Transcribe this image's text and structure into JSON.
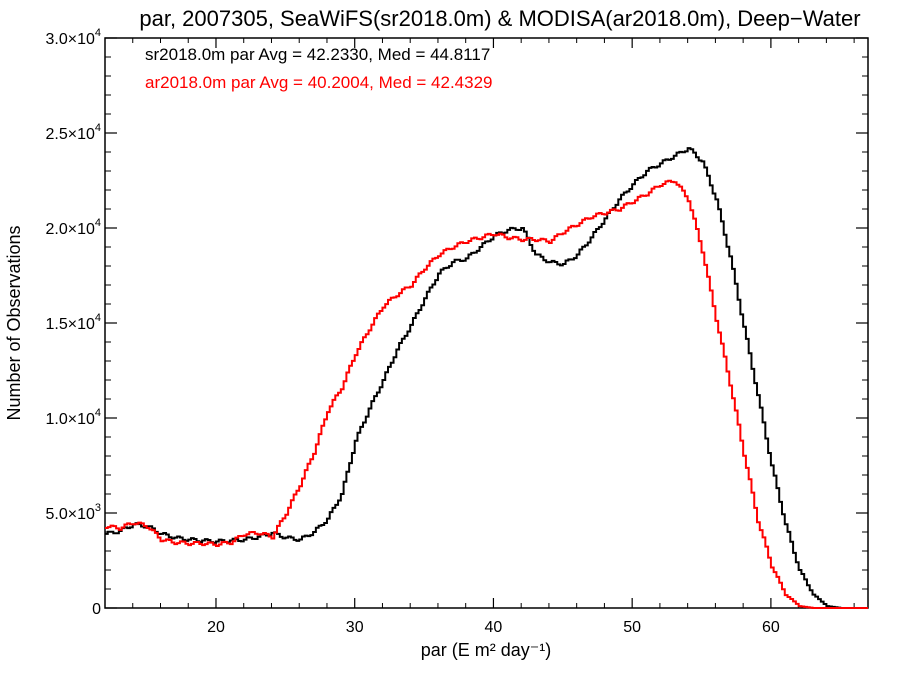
{
  "chart_data": {
    "type": "line",
    "title": "par, 2007305, SeaWiFS(sr2018.0m) & MODISA(ar2018.0m), Deep−Water",
    "xlabel": "par (E m² day⁻¹)",
    "ylabel": "Number of Observations",
    "xlim": [
      12,
      67
    ],
    "ylim": [
      0,
      30000
    ],
    "grid": false,
    "x_ticks": [
      {
        "value": 20,
        "label": "20"
      },
      {
        "value": 30,
        "label": "30"
      },
      {
        "value": 40,
        "label": "40"
      },
      {
        "value": 50,
        "label": "50"
      },
      {
        "value": 60,
        "label": "60"
      }
    ],
    "y_ticks": [
      {
        "value": 0,
        "mantissa": "0",
        "exponent": ""
      },
      {
        "value": 5000,
        "mantissa": "5.0×10",
        "exponent": "3"
      },
      {
        "value": 10000,
        "mantissa": "1.0×10",
        "exponent": "4"
      },
      {
        "value": 15000,
        "mantissa": "1.5×10",
        "exponent": "4"
      },
      {
        "value": 20000,
        "mantissa": "2.0×10",
        "exponent": "4"
      },
      {
        "value": 25000,
        "mantissa": "2.5×10",
        "exponent": "4"
      },
      {
        "value": 30000,
        "mantissa": "3.0×10",
        "exponent": "4"
      }
    ],
    "legend_position": "top-left",
    "series": [
      {
        "name": "sr2018.0m",
        "label": "sr2018.0m par Avg = 42.2330, Med = 44.8117",
        "color": "#000000",
        "points": [
          [
            12,
            3900
          ],
          [
            13,
            4050
          ],
          [
            14,
            4400
          ],
          [
            15,
            4300
          ],
          [
            16,
            3900
          ],
          [
            17,
            3700
          ],
          [
            18,
            3600
          ],
          [
            19,
            3550
          ],
          [
            20,
            3500
          ],
          [
            21,
            3550
          ],
          [
            22,
            3600
          ],
          [
            23,
            3750
          ],
          [
            24,
            3950
          ],
          [
            25,
            3700
          ],
          [
            26,
            3600
          ],
          [
            27,
            4000
          ],
          [
            28,
            4700
          ],
          [
            29,
            6000
          ],
          [
            30,
            8800
          ],
          [
            31,
            10500
          ],
          [
            32,
            12000
          ],
          [
            33,
            13600
          ],
          [
            34,
            14900
          ],
          [
            35,
            16300
          ],
          [
            36,
            17600
          ],
          [
            37,
            18200
          ],
          [
            38,
            18400
          ],
          [
            39,
            19000
          ],
          [
            40,
            19600
          ],
          [
            41,
            19900
          ],
          [
            42,
            20000
          ],
          [
            43,
            18600
          ],
          [
            44,
            18200
          ],
          [
            45,
            18100
          ],
          [
            46,
            18600
          ],
          [
            47,
            19500
          ],
          [
            48,
            20500
          ],
          [
            49,
            21500
          ],
          [
            50,
            22300
          ],
          [
            51,
            23000
          ],
          [
            52,
            23400
          ],
          [
            53,
            23800
          ],
          [
            54,
            24200
          ],
          [
            55,
            23500
          ],
          [
            56,
            21500
          ],
          [
            57,
            18500
          ],
          [
            58,
            14800
          ],
          [
            59,
            11200
          ],
          [
            60,
            7500
          ],
          [
            61,
            4400
          ],
          [
            62,
            2000
          ],
          [
            63,
            700
          ],
          [
            64,
            100
          ],
          [
            65,
            0
          ],
          [
            66,
            0
          ],
          [
            67,
            0
          ]
        ]
      },
      {
        "name": "ar2018.0m",
        "label": "ar2018.0m par Avg = 40.2004, Med = 42.4329",
        "color": "#ff0000",
        "points": [
          [
            12,
            4300
          ],
          [
            13,
            4200
          ],
          [
            14,
            4500
          ],
          [
            15,
            4300
          ],
          [
            16,
            3600
          ],
          [
            17,
            3450
          ],
          [
            18,
            3400
          ],
          [
            19,
            3400
          ],
          [
            20,
            3350
          ],
          [
            21,
            3450
          ],
          [
            22,
            3900
          ],
          [
            23,
            3950
          ],
          [
            24,
            3750
          ],
          [
            25,
            5000
          ],
          [
            26,
            6500
          ],
          [
            27,
            8200
          ],
          [
            28,
            10400
          ],
          [
            29,
            11600
          ],
          [
            30,
            13400
          ],
          [
            31,
            14700
          ],
          [
            32,
            15900
          ],
          [
            33,
            16500
          ],
          [
            34,
            17000
          ],
          [
            35,
            17900
          ],
          [
            36,
            18600
          ],
          [
            37,
            19000
          ],
          [
            38,
            19300
          ],
          [
            39,
            19500
          ],
          [
            40,
            19700
          ],
          [
            41,
            19500
          ],
          [
            42,
            19400
          ],
          [
            43,
            19400
          ],
          [
            44,
            19300
          ],
          [
            45,
            19800
          ],
          [
            46,
            20200
          ],
          [
            47,
            20600
          ],
          [
            48,
            20800
          ],
          [
            49,
            21000
          ],
          [
            50,
            21400
          ],
          [
            51,
            21800
          ],
          [
            52,
            22300
          ],
          [
            53,
            22500
          ],
          [
            54,
            21500
          ],
          [
            55,
            18800
          ],
          [
            56,
            15200
          ],
          [
            57,
            11800
          ],
          [
            58,
            8100
          ],
          [
            59,
            4600
          ],
          [
            60,
            2200
          ],
          [
            61,
            700
          ],
          [
            62,
            100
          ],
          [
            63,
            0
          ],
          [
            64,
            0
          ],
          [
            65,
            0
          ],
          [
            66,
            0
          ],
          [
            67,
            0
          ]
        ]
      }
    ]
  }
}
